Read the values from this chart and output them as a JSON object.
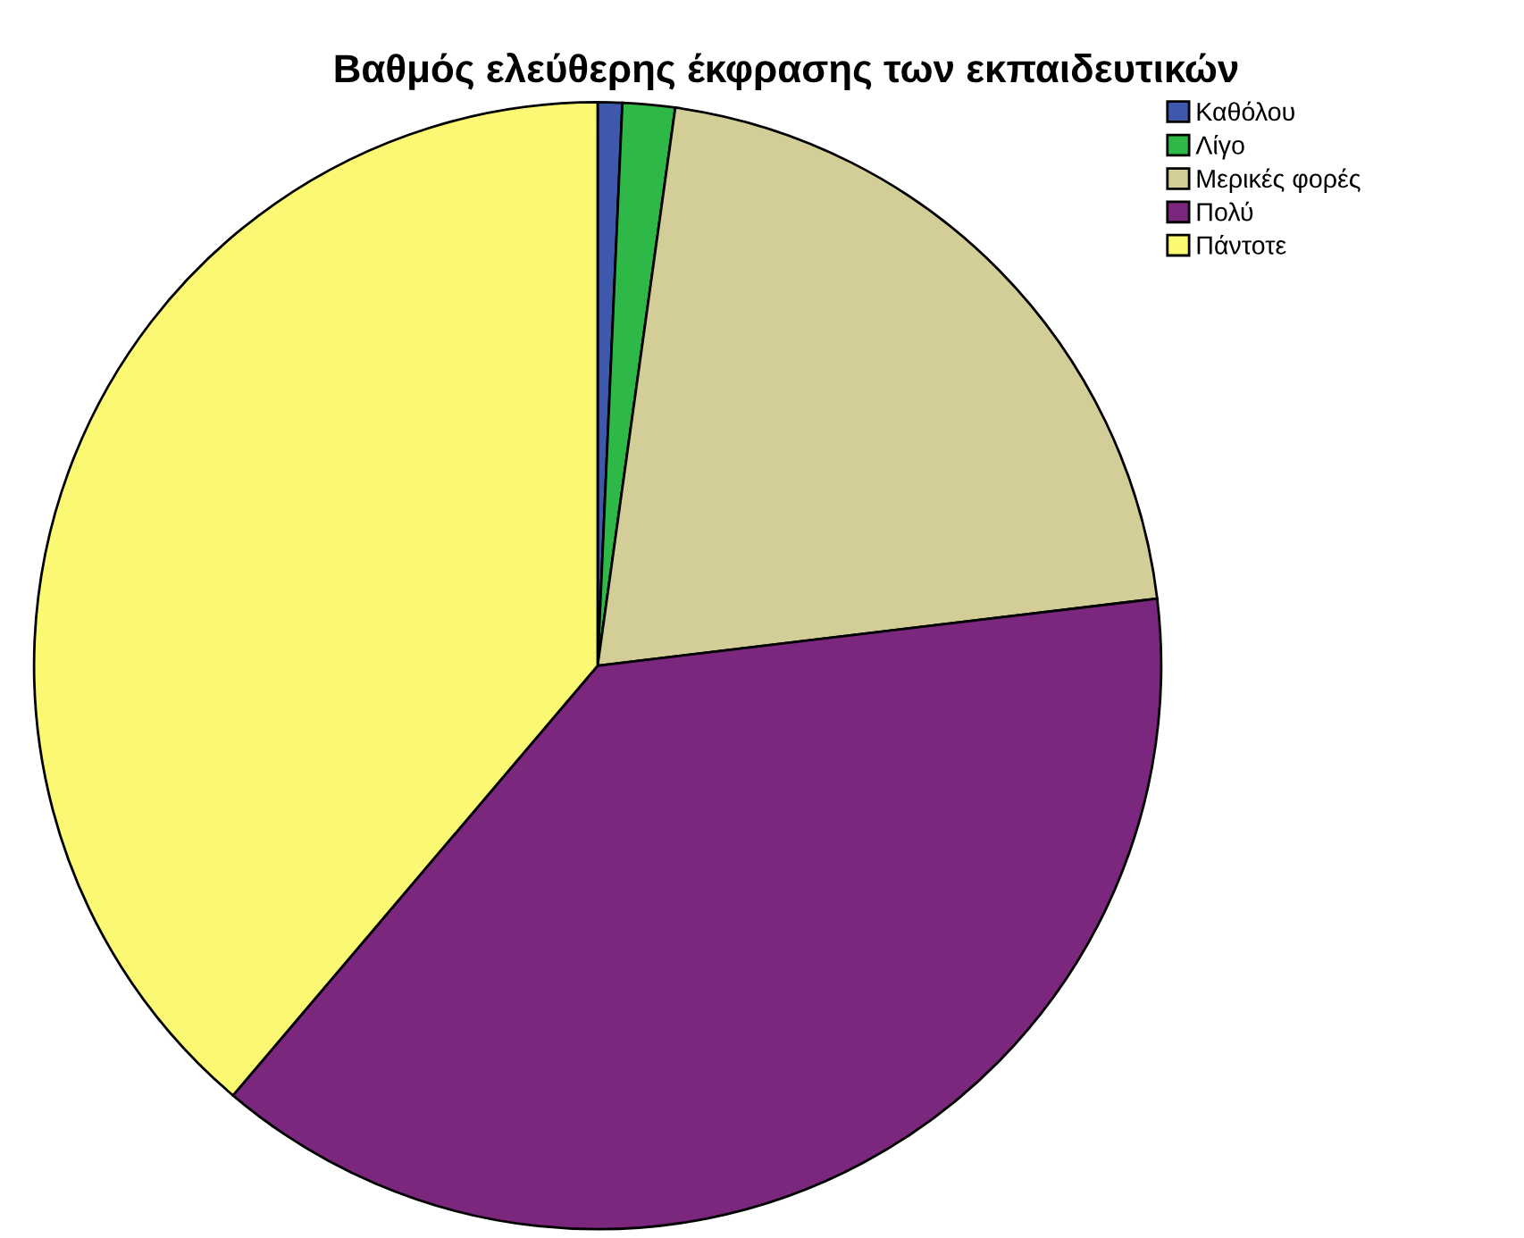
{
  "chart_data": {
    "type": "pie",
    "title": "Βαθμός ελεύθερης έκφρασης των εκπαιδευτικών",
    "categories": [
      "Καθόλου",
      "Λίγο",
      "Μερικές φορές",
      "Πολύ",
      "Πάντοτε"
    ],
    "values": [
      0.7,
      1.5,
      20.9,
      38.1,
      38.8
    ],
    "colors": [
      "#3e58ac",
      "#2eb848",
      "#d3ce97",
      "#7b277d",
      "#fbf873"
    ],
    "legend": "top right"
  }
}
